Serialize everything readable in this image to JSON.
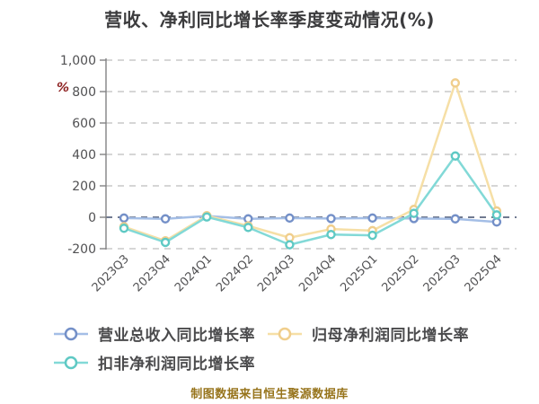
{
  "title": "营收、净利同比增长率季度变动情况(%)",
  "caption": "制图数据来自恒生聚源数据库",
  "chart_data": {
    "type": "line",
    "title": "营收、净利同比增长率季度变动情况(%)",
    "categories": [
      "2023Q3",
      "2023Q4",
      "2024Q1",
      "2024Q2",
      "2024Q3",
      "2024Q4",
      "2025Q1",
      "2025Q2",
      "2025Q3",
      "2025Q4"
    ],
    "series": [
      {
        "name": "营业总收入同比增长率",
        "color": "#A4BEE6",
        "marker_border": "#7490C8",
        "values": [
          -5,
          -10,
          8,
          -10,
          -5,
          -8,
          -5,
          -8,
          -10,
          -30
        ]
      },
      {
        "name": "归母净利润同比增长率",
        "color": "#F6DFA6",
        "marker_border": "#F0CE8C",
        "values": [
          -60,
          -150,
          10,
          -55,
          -130,
          -75,
          -85,
          50,
          855,
          40
        ]
      },
      {
        "name": "扣非净利润同比增长率",
        "color": "#82D9D7",
        "marker_border": "#5FC9C4",
        "values": [
          -70,
          -160,
          2,
          -65,
          -175,
          -110,
          -115,
          25,
          390,
          15
        ]
      }
    ],
    "ylim": [
      -200,
      1000
    ],
    "ytick_values": [
      1000,
      800,
      600,
      400,
      200,
      0,
      -200
    ],
    "ytick_labels": [
      "1,000",
      "800",
      "600",
      "400",
      "200",
      "0",
      "-200"
    ],
    "y_unit": "%",
    "xlabel": "",
    "ylabel": "",
    "grid": "dashed",
    "legend_position": "bottom"
  },
  "colors": {
    "background": "#FFFFFF",
    "title": "#3C3C3E",
    "axis_label": "#515153",
    "axis_line": "#828284",
    "gridline": "#C8C8C8",
    "zero_line": "#414E6B",
    "y_unit": "#8E2222",
    "caption": "#97741C"
  }
}
